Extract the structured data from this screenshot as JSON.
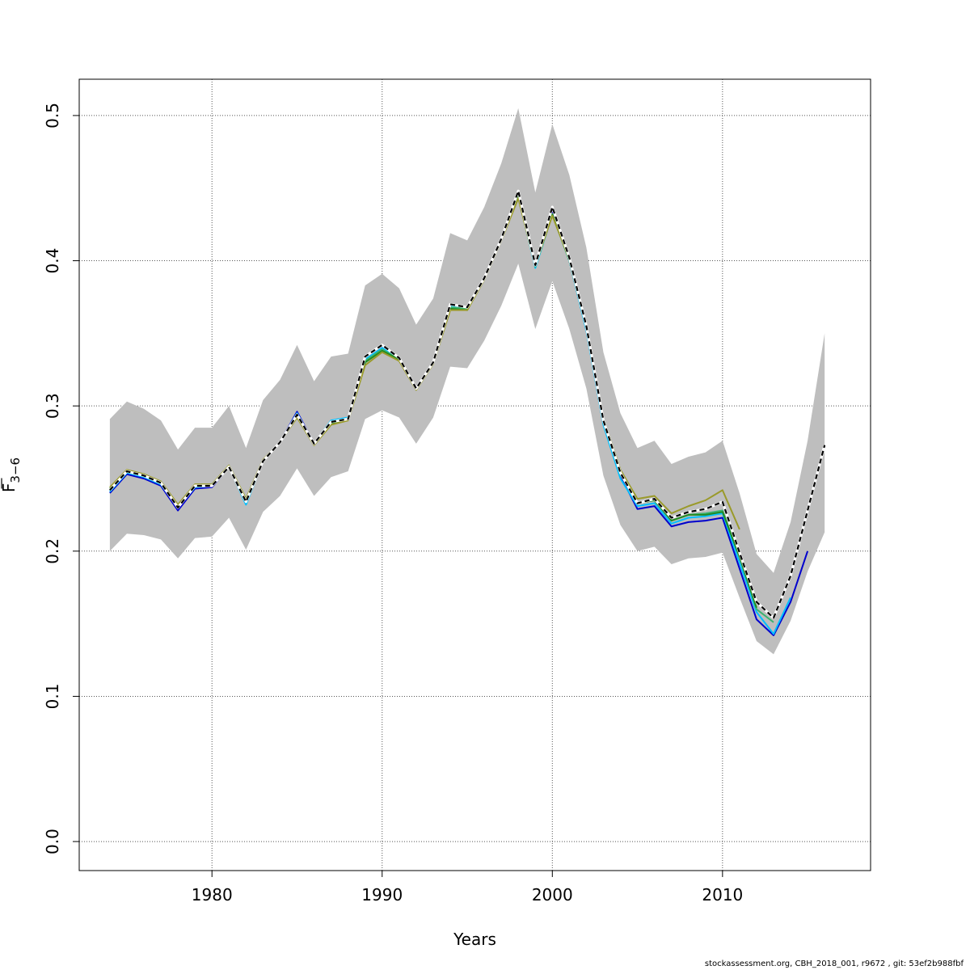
{
  "chart_data": {
    "type": "line",
    "title": "",
    "xlabel": "Years",
    "ylabel": "F̅ 3−6",
    "ylabel_main": "F",
    "ylabel_sub": "3−6",
    "xlim": [
      1972.2,
      2018.7
    ],
    "ylim": [
      -0.02,
      0.525
    ],
    "x_ticks": [
      1980,
      1990,
      2000,
      2010
    ],
    "y_ticks": [
      0.0,
      0.1,
      0.2,
      0.3,
      0.4,
      0.5
    ],
    "x_tick_labels": [
      "1980",
      "1990",
      "2000",
      "2010"
    ],
    "y_tick_labels": [
      "0.0",
      "0.1",
      "0.2",
      "0.3",
      "0.4",
      "0.5"
    ],
    "grid": true,
    "colors": {
      "band": "#bebebe",
      "base": "#000000",
      "peel1": "#00bfff",
      "peel2": "#228b22",
      "peel3": "#0000cd",
      "peel4": "#9a9a2a",
      "peel5": "#3cb371"
    },
    "band": {
      "x": [
        1974,
        1975,
        1976,
        1977,
        1978,
        1979,
        1980,
        1981,
        1982,
        1983,
        1984,
        1985,
        1986,
        1987,
        1988,
        1989,
        1990,
        1991,
        1992,
        1993,
        1994,
        1995,
        1996,
        1997,
        1998,
        1999,
        2000,
        2001,
        2002,
        2003,
        2004,
        2005,
        2006,
        2007,
        2008,
        2009,
        2010,
        2011,
        2012,
        2013,
        2014,
        2015,
        2016
      ],
      "upper": [
        0.291,
        0.303,
        0.298,
        0.29,
        0.27,
        0.285,
        0.285,
        0.3,
        0.271,
        0.304,
        0.318,
        0.342,
        0.317,
        0.334,
        0.336,
        0.383,
        0.391,
        0.381,
        0.356,
        0.374,
        0.419,
        0.414,
        0.437,
        0.467,
        0.505,
        0.447,
        0.494,
        0.459,
        0.409,
        0.337,
        0.295,
        0.271,
        0.276,
        0.26,
        0.265,
        0.268,
        0.276,
        0.24,
        0.198,
        0.185,
        0.22,
        0.276,
        0.35
      ],
      "lower": [
        0.2,
        0.212,
        0.211,
        0.208,
        0.195,
        0.209,
        0.21,
        0.223,
        0.201,
        0.227,
        0.238,
        0.257,
        0.238,
        0.251,
        0.255,
        0.291,
        0.297,
        0.292,
        0.274,
        0.292,
        0.327,
        0.326,
        0.345,
        0.369,
        0.398,
        0.353,
        0.386,
        0.353,
        0.312,
        0.252,
        0.218,
        0.2,
        0.203,
        0.191,
        0.195,
        0.196,
        0.199,
        0.168,
        0.138,
        0.129,
        0.152,
        0.186,
        0.213
      ]
    },
    "series": [
      {
        "color_key": "peel3",
        "dashed": false,
        "x": [
          1974,
          1975,
          1976,
          1977,
          1978,
          1979,
          1980,
          1981,
          1982,
          1983,
          1984,
          1985,
          1986,
          1987,
          1988,
          1989,
          1990,
          1991,
          1992,
          1993,
          1994,
          1995,
          1996,
          1997,
          1998,
          1999,
          2000,
          2001,
          2002,
          2003,
          2004,
          2005,
          2006,
          2007,
          2008,
          2009,
          2010,
          2011,
          2012,
          2013,
          2014,
          2015
        ],
        "values": [
          0.24,
          0.253,
          0.25,
          0.245,
          0.228,
          0.243,
          0.244,
          0.258,
          0.233,
          0.262,
          0.275,
          0.296,
          0.274,
          0.289,
          0.291,
          0.331,
          0.34,
          0.333,
          0.312,
          0.33,
          0.369,
          0.368,
          0.388,
          0.415,
          0.448,
          0.397,
          0.435,
          0.4,
          0.353,
          0.288,
          0.252,
          0.229,
          0.231,
          0.217,
          0.22,
          0.221,
          0.223,
          0.188,
          0.153,
          0.142,
          0.165,
          0.2
        ]
      },
      {
        "color_key": "peel1",
        "dashed": false,
        "x": [
          1974,
          1975,
          1976,
          1977,
          1978,
          1979,
          1980,
          1981,
          1982,
          1983,
          1984,
          1985,
          1986,
          1987,
          1988,
          1989,
          1990,
          1991,
          1992,
          1993,
          1994,
          1995,
          1996,
          1997,
          1998,
          1999,
          2000,
          2001,
          2002,
          2003,
          2004,
          2005,
          2006,
          2007,
          2008,
          2009,
          2010,
          2011,
          2012,
          2013,
          2014
        ],
        "values": [
          0.241,
          0.254,
          0.251,
          0.246,
          0.23,
          0.244,
          0.245,
          0.258,
          0.232,
          0.262,
          0.275,
          0.295,
          0.274,
          0.29,
          0.292,
          0.332,
          0.34,
          0.333,
          0.312,
          0.33,
          0.369,
          0.368,
          0.388,
          0.415,
          0.445,
          0.395,
          0.432,
          0.4,
          0.352,
          0.287,
          0.25,
          0.231,
          0.233,
          0.219,
          0.223,
          0.224,
          0.226,
          0.192,
          0.158,
          0.143,
          0.168
        ]
      },
      {
        "color_key": "peel5",
        "dashed": false,
        "x": [
          1974,
          1975,
          1976,
          1977,
          1978,
          1979,
          1980,
          1981,
          1982,
          1983,
          1984,
          1985,
          1986,
          1987,
          1988,
          1989,
          1990,
          1991,
          1992,
          1993,
          1994,
          1995,
          1996,
          1997,
          1998,
          1999,
          2000,
          2001,
          2002,
          2003,
          2004,
          2005,
          2006,
          2007,
          2008,
          2009,
          2010,
          2011,
          2012,
          2013
        ],
        "values": [
          0.242,
          0.255,
          0.252,
          0.247,
          0.231,
          0.245,
          0.246,
          0.258,
          0.234,
          0.262,
          0.275,
          0.293,
          0.274,
          0.289,
          0.291,
          0.331,
          0.339,
          0.332,
          0.312,
          0.33,
          0.368,
          0.367,
          0.388,
          0.415,
          0.444,
          0.396,
          0.432,
          0.4,
          0.354,
          0.289,
          0.253,
          0.233,
          0.235,
          0.221,
          0.225,
          0.226,
          0.228,
          0.196,
          0.16,
          0.151
        ]
      },
      {
        "color_key": "peel2",
        "dashed": false,
        "x": [
          1974,
          1975,
          1976,
          1977,
          1978,
          1979,
          1980,
          1981,
          1982,
          1983,
          1984,
          1985,
          1986,
          1987,
          1988,
          1989,
          1990,
          1991,
          1992,
          1993,
          1994,
          1995,
          1996,
          1997,
          1998,
          1999,
          2000,
          2001,
          2002,
          2003,
          2004,
          2005,
          2006,
          2007,
          2008,
          2009,
          2010,
          2011,
          2012
        ],
        "values": [
          0.243,
          0.255,
          0.252,
          0.247,
          0.231,
          0.245,
          0.246,
          0.258,
          0.235,
          0.262,
          0.275,
          0.293,
          0.274,
          0.288,
          0.291,
          0.33,
          0.338,
          0.332,
          0.312,
          0.33,
          0.367,
          0.366,
          0.388,
          0.415,
          0.444,
          0.397,
          0.432,
          0.401,
          0.355,
          0.29,
          0.254,
          0.233,
          0.235,
          0.221,
          0.225,
          0.225,
          0.227,
          0.196,
          0.161
        ]
      },
      {
        "color_key": "peel4",
        "dashed": false,
        "x": [
          1974,
          1975,
          1976,
          1977,
          1978,
          1979,
          1980,
          1981,
          1982,
          1983,
          1984,
          1985,
          1986,
          1987,
          1988,
          1989,
          1990,
          1991,
          1992,
          1993,
          1994,
          1995,
          1996,
          1997,
          1998,
          1999,
          2000,
          2001,
          2002,
          2003,
          2004,
          2005,
          2006,
          2007,
          2008,
          2009,
          2010,
          2011
        ],
        "values": [
          0.244,
          0.256,
          0.253,
          0.248,
          0.232,
          0.246,
          0.246,
          0.259,
          0.236,
          0.263,
          0.275,
          0.292,
          0.273,
          0.287,
          0.29,
          0.328,
          0.337,
          0.331,
          0.311,
          0.329,
          0.366,
          0.366,
          0.387,
          0.414,
          0.443,
          0.397,
          0.431,
          0.401,
          0.356,
          0.291,
          0.256,
          0.236,
          0.238,
          0.226,
          0.231,
          0.235,
          0.242,
          0.215
        ]
      },
      {
        "color_key": "base",
        "dashed": true,
        "x": [
          1974,
          1975,
          1976,
          1977,
          1978,
          1979,
          1980,
          1981,
          1982,
          1983,
          1984,
          1985,
          1986,
          1987,
          1988,
          1989,
          1990,
          1991,
          1992,
          1993,
          1994,
          1995,
          1996,
          1997,
          1998,
          1999,
          2000,
          2001,
          2002,
          2003,
          2004,
          2005,
          2006,
          2007,
          2008,
          2009,
          2010,
          2011,
          2012,
          2013,
          2014,
          2015,
          2016
        ],
        "values": [
          0.242,
          0.255,
          0.252,
          0.247,
          0.23,
          0.245,
          0.245,
          0.258,
          0.234,
          0.262,
          0.275,
          0.294,
          0.274,
          0.289,
          0.291,
          0.334,
          0.342,
          0.333,
          0.312,
          0.33,
          0.37,
          0.368,
          0.388,
          0.415,
          0.448,
          0.397,
          0.437,
          0.402,
          0.355,
          0.29,
          0.254,
          0.233,
          0.236,
          0.223,
          0.227,
          0.229,
          0.234,
          0.199,
          0.165,
          0.154,
          0.183,
          0.228,
          0.273
        ]
      }
    ]
  },
  "footer": "stockassessment.org, CBH_2018_001, r9672 , git: 53ef2b988fbf"
}
